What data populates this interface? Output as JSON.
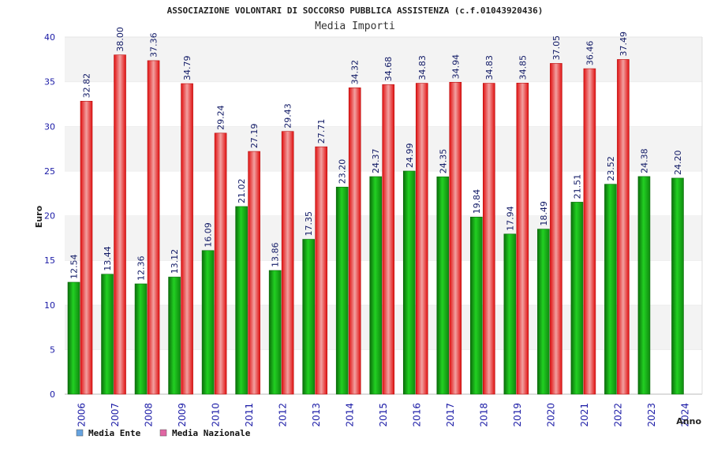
{
  "chart_data": {
    "type": "bar",
    "title": "ASSOCIAZIONE VOLONTARI DI SOCCORSO PUBBLICA ASSISTENZA (c.f.01043920436)",
    "subtitle": "Media Importi",
    "xlabel": "Anno",
    "ylabel": "Euro",
    "ylim": [
      0,
      40
    ],
    "yticks": [
      0,
      5,
      10,
      15,
      20,
      25,
      30,
      35,
      40
    ],
    "categories": [
      "2006",
      "2007",
      "2008",
      "2009",
      "2010",
      "2011",
      "2012",
      "2013",
      "2014",
      "2015",
      "2016",
      "2017",
      "2018",
      "2019",
      "2020",
      "2021",
      "2022",
      "2023",
      "2024"
    ],
    "series": [
      {
        "name": "Media Ente",
        "legend_color": "#66a3e0",
        "bar_color": "#1aa61a",
        "values": [
          12.54,
          13.44,
          12.36,
          13.12,
          16.09,
          21.02,
          13.86,
          17.35,
          23.2,
          24.37,
          24.99,
          24.35,
          19.84,
          17.94,
          18.49,
          21.51,
          23.52,
          24.38,
          24.2
        ],
        "labels": [
          "12.54",
          "13.44",
          "12.36",
          "13.12",
          "16.09",
          "21.02",
          "13.86",
          "17.35",
          "23.20",
          "24.37",
          "24.99",
          "24.35",
          "19.84",
          "17.94",
          "18.49",
          "21.51",
          "23.52",
          "24.38",
          "24.20"
        ]
      },
      {
        "name": "Media Nazionale",
        "legend_color": "#e066a3",
        "bar_color": "#e61a1a",
        "values": [
          32.82,
          38.0,
          37.36,
          34.79,
          29.24,
          27.19,
          29.43,
          27.71,
          34.32,
          34.68,
          34.83,
          34.94,
          34.83,
          34.85,
          37.05,
          36.46,
          37.49,
          null,
          null
        ],
        "labels": [
          "32.82",
          "38.00",
          "37.36",
          "34.79",
          "29.24",
          "27.19",
          "29.43",
          "27.71",
          "34.32",
          "34.68",
          "34.83",
          "34.94",
          "34.83",
          "34.85",
          "37.05",
          "36.46",
          "37.49",
          null,
          null
        ]
      }
    ],
    "grid": true,
    "legend_position": "bottom-left"
  }
}
